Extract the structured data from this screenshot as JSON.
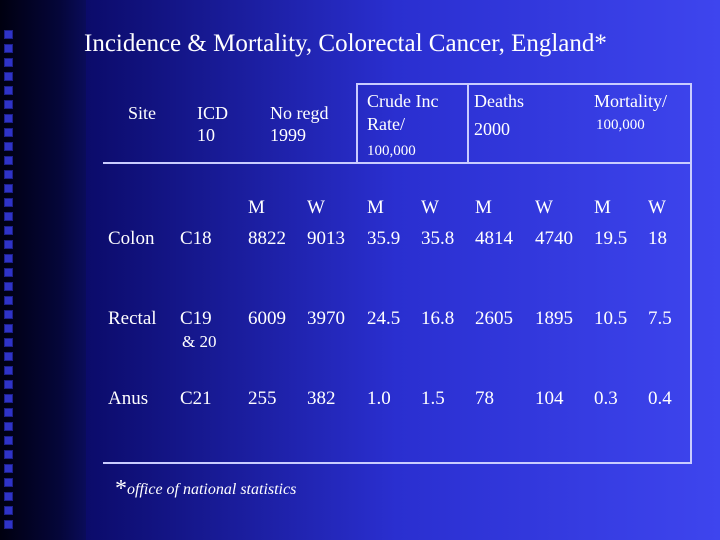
{
  "slide": {
    "title": "Incidence & Mortality, Colorectal Cancer, England*",
    "footnote_star": "*",
    "footnote": "office of national statistics"
  },
  "table": {
    "headers": {
      "site": "Site",
      "icd": [
        "ICD",
        "10"
      ],
      "regd": [
        "No regd",
        "1999"
      ],
      "crude": [
        "Crude Inc",
        "Rate/",
        "100,000"
      ],
      "deaths": [
        "Deaths",
        "2000"
      ],
      "mortality": [
        "Mortality/",
        "100,000"
      ]
    },
    "sex_labels": [
      "M",
      "W",
      "M",
      "W",
      "M",
      "W",
      "M",
      "W"
    ],
    "rows": [
      {
        "site": "Colon",
        "icd": [
          "C18"
        ],
        "values": [
          "8822",
          "9013",
          "35.9",
          "35.8",
          "4814",
          "4740",
          "19.5",
          "18"
        ]
      },
      {
        "site": "Rectal",
        "icd": [
          "C19",
          "& 20"
        ],
        "values": [
          "6009",
          "3970",
          "24.5",
          "16.8",
          "2605",
          "1895",
          "10.5",
          "7.5"
        ]
      },
      {
        "site": "Anus",
        "icd": [
          "C21"
        ],
        "values": [
          "255",
          "382",
          "1.0",
          "1.5",
          "78",
          "104",
          "0.3",
          "0.4"
        ]
      }
    ]
  }
}
